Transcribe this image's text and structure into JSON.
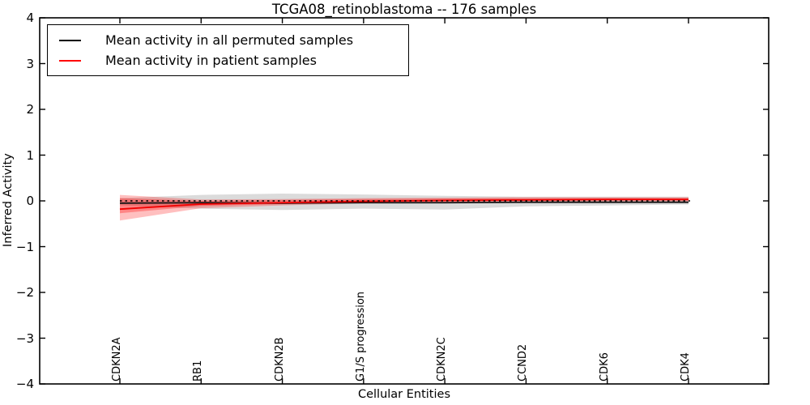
{
  "chart": {
    "title": "TCGA08_retinoblastoma -- 176 samples",
    "xlabel": "Cellular Entities",
    "ylabel": "Inferred Activity"
  },
  "chart_data": {
    "type": "line",
    "title": "TCGA08_retinoblastoma -- 176 samples",
    "xlabel": "Cellular Entities",
    "ylabel": "Inferred Activity",
    "ylim": [
      -4,
      4
    ],
    "yticks": [
      4,
      3,
      2,
      1,
      0,
      -1,
      -2,
      -3,
      -4
    ],
    "grid": false,
    "legend_position": "upper left",
    "categories": [
      "CDKN2A",
      "RB1",
      "CDKN2B",
      "G1/S progression",
      "CDKN2C",
      "CCND2",
      "CDK6",
      "CDK4"
    ],
    "series": [
      {
        "name": "Mean activity in all permuted samples",
        "color": "#141414",
        "values": [
          -0.05,
          -0.04,
          -0.05,
          -0.04,
          -0.04,
          -0.03,
          -0.03,
          -0.03
        ],
        "band_upper": [
          0.06,
          0.13,
          0.16,
          0.14,
          0.11,
          0.09,
          0.09,
          0.09
        ],
        "band_lower": [
          -0.1,
          -0.17,
          -0.2,
          -0.17,
          -0.19,
          -0.12,
          -0.1,
          -0.08
        ],
        "band_color": "rgba(0,0,0,0.14)"
      },
      {
        "name": "Mean activity in patient samples",
        "color": "#f10000",
        "values": [
          -0.18,
          -0.07,
          -0.04,
          -0.01,
          0.01,
          0.02,
          0.03,
          0.03
        ],
        "band_outer_upper": [
          0.13,
          0.03,
          0.04,
          0.06,
          0.07,
          0.08,
          0.08,
          0.08
        ],
        "band_outer_lower": [
          -0.43,
          -0.16,
          -0.1,
          -0.05,
          -0.03,
          -0.02,
          -0.01,
          -0.01
        ],
        "band_outer_color": "rgba(255,0,0,0.25)",
        "band_inner_upper": [
          0.06,
          0.0,
          0.02,
          0.04,
          0.05,
          0.06,
          0.06,
          0.06
        ],
        "band_inner_lower": [
          -0.27,
          -0.11,
          -0.07,
          -0.03,
          -0.01,
          0.0,
          0.01,
          0.01
        ],
        "band_inner_color": "rgba(255,0,0,0.30)"
      }
    ],
    "reference_line": {
      "y": 0,
      "style": "dotted",
      "color": "#000000"
    }
  }
}
